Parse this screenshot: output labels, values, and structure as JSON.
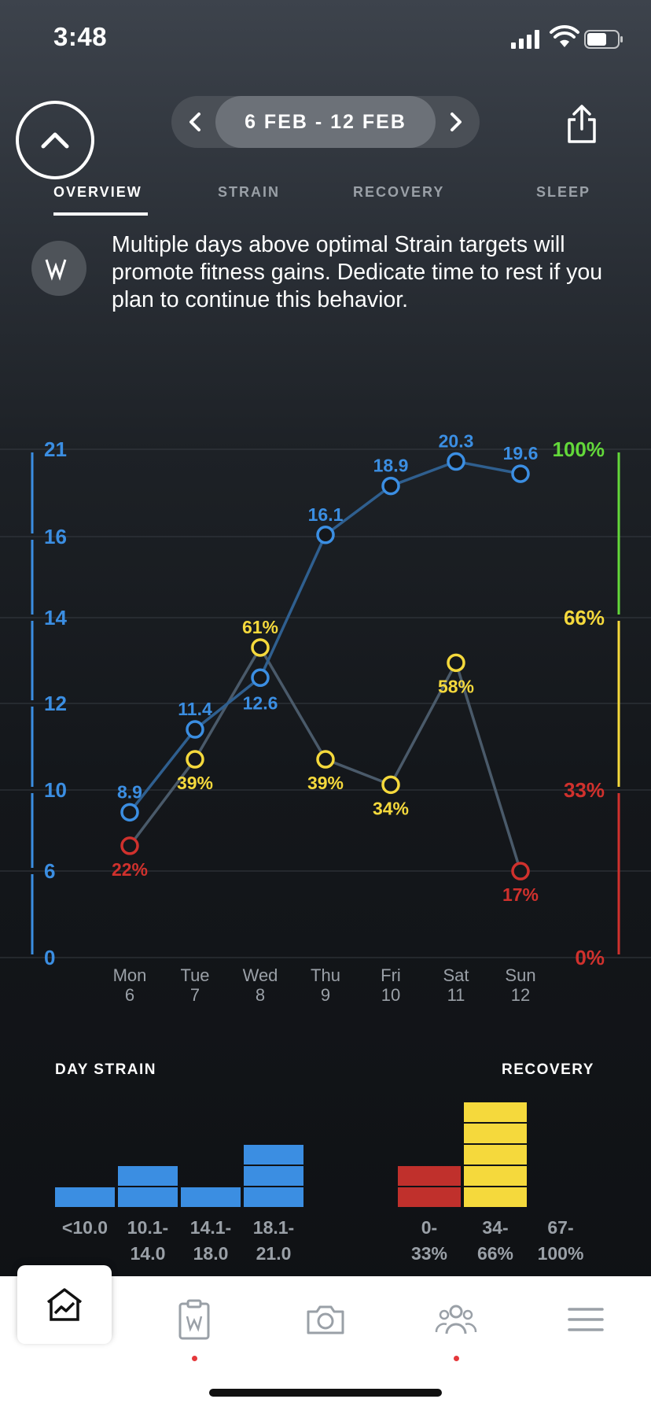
{
  "status_bar": {
    "time": "3:48"
  },
  "header": {
    "date_range": "6 FEB - 12 FEB",
    "prev_icon": "chevron-left-icon",
    "next_icon": "chevron-right-icon",
    "collapse_icon": "chevron-up-icon",
    "share_icon": "share-icon"
  },
  "tabs": [
    {
      "label": "OVERVIEW",
      "active": true
    },
    {
      "label": "STRAIN",
      "active": false
    },
    {
      "label": "RECOVERY",
      "active": false
    },
    {
      "label": "SLEEP",
      "active": false
    }
  ],
  "insight": {
    "icon": "whoop-logo-icon",
    "text": "Multiple days above optimal Strain targets will promote fitness gains. Dedicate time to rest if you plan to continue this behavior."
  },
  "chart_data": {
    "type": "line",
    "categories": [
      "Mon\n6",
      "Tue\n7",
      "Wed\n8",
      "Thu\n9",
      "Fri\n10",
      "Sat\n11",
      "Sun\n12"
    ],
    "days": [
      "Mon",
      "Tue",
      "Wed",
      "Thu",
      "Fri",
      "Sat",
      "Sun"
    ],
    "dates": [
      "6",
      "7",
      "8",
      "9",
      "10",
      "11",
      "12"
    ],
    "left_axis_ticks": [
      "21",
      "16",
      "14",
      "12",
      "10",
      "6",
      "0"
    ],
    "right_axis_ticks": [
      "100%",
      "66%",
      "33%",
      "0%"
    ],
    "series": [
      {
        "values": [
          8.9,
          11.4,
          12.6,
          16.1,
          18.9,
          20.3,
          19.6
        ],
        "labels": [
          "8.9",
          "11.4",
          "12.6",
          "16.1",
          "18.9",
          "20.3",
          "19.6"
        ]
      },
      {
        "values": [
          22,
          39,
          61,
          39,
          34,
          58,
          17
        ],
        "labels": [
          "22%",
          "39%",
          "61%",
          "39%",
          "34%",
          "58%",
          "17%"
        ]
      }
    ],
    "colors": {
      "strain": "#3b8ee2",
      "red": "#d0312d",
      "yellow": "#f5d93c",
      "green": "#63d83a",
      "line": "#4a5a6a"
    },
    "grid": true
  },
  "histograms": {
    "strain_title": "DAY STRAIN",
    "recovery_title": "RECOVERY",
    "strain_bins": [
      {
        "label_lines": [
          "<10.0",
          ""
        ],
        "count": 1
      },
      {
        "label_lines": [
          "10.1-",
          "14.0"
        ],
        "count": 2
      },
      {
        "label_lines": [
          "14.1-",
          "18.0"
        ],
        "count": 1
      },
      {
        "label_lines": [
          "18.1-",
          "21.0"
        ],
        "count": 3
      }
    ],
    "recovery_bins": [
      {
        "label_lines": [
          "0-",
          "33%"
        ],
        "count": 2,
        "color": "#c0302c"
      },
      {
        "label_lines": [
          "34-",
          "66%"
        ],
        "count": 5,
        "color": "#f5d93c"
      },
      {
        "label_lines": [
          "67-",
          "100%"
        ],
        "count": 0,
        "color": "#63d83a"
      }
    ]
  },
  "bottom_nav": {
    "items": [
      "home-chart-icon",
      "journal-clipboard-icon",
      "camera-icon",
      "community-icon",
      "menu-icon"
    ]
  }
}
